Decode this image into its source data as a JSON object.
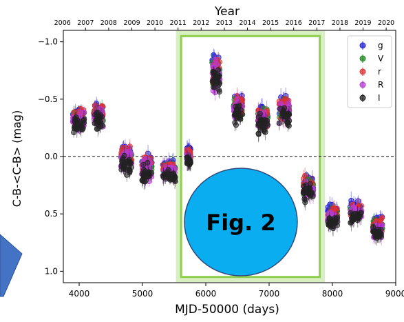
{
  "chart_data": {
    "type": "scatter",
    "title": "",
    "xlabel": "MJD-50000 (days)",
    "ylabel": "C-B-<C-B> (mag)",
    "top_axis_label": "Year",
    "xlim": [
      3750,
      9000
    ],
    "ylim": [
      1.1,
      -1.1
    ],
    "y_inverted": true,
    "x_ticks": [
      4000,
      5000,
      6000,
      7000,
      8000,
      9000
    ],
    "x_tick_labels": [
      "4000",
      "5000",
      "6000",
      "7000",
      "8000",
      "9000"
    ],
    "y_ticks": [
      -1.0,
      -0.5,
      0.0,
      0.5,
      1.0
    ],
    "y_tick_labels": [
      "−1.0",
      "−0.5",
      "0.0",
      "0.5",
      "1.0"
    ],
    "year_ticks": [
      {
        "label": "2006",
        "mjd": 3736
      },
      {
        "label": "2007",
        "mjd": 4101
      },
      {
        "label": "2008",
        "mjd": 4466
      },
      {
        "label": "2009",
        "mjd": 4832
      },
      {
        "label": "2010",
        "mjd": 5197
      },
      {
        "label": "2011",
        "mjd": 5562
      },
      {
        "label": "2012",
        "mjd": 5927
      },
      {
        "label": "2013",
        "mjd": 6293
      },
      {
        "label": "2014",
        "mjd": 6658
      },
      {
        "label": "2015",
        "mjd": 7023
      },
      {
        "label": "2016",
        "mjd": 7388
      },
      {
        "label": "2017",
        "mjd": 7754
      },
      {
        "label": "2018",
        "mjd": 8119
      },
      {
        "label": "2019",
        "mjd": 8484
      },
      {
        "label": "2020",
        "mjd": 8849
      }
    ],
    "reference_line": {
      "y": 0.0,
      "style": "dashed"
    },
    "legend": {
      "placement": "top-right",
      "entries": [
        {
          "label": "g",
          "color": "#2424d6"
        },
        {
          "label": "V",
          "color": "#1f8a1f"
        },
        {
          "label": "r",
          "color": "#e03030"
        },
        {
          "label": "R",
          "color": "#b63bd6"
        },
        {
          "label": "I",
          "color": "#222222"
        }
      ]
    },
    "season_groups": [
      {
        "x_range": [
          3900,
          4080
        ],
        "y_mean": -0.32,
        "spread": 0.1
      },
      {
        "x_range": [
          4230,
          4380
        ],
        "y_mean": -0.35,
        "spread": 0.12
      },
      {
        "x_range": [
          4660,
          4830
        ],
        "y_mean": 0.02,
        "spread": 0.12
      },
      {
        "x_range": [
          4990,
          5150
        ],
        "y_mean": 0.1,
        "spread": 0.13
      },
      {
        "x_range": [
          5320,
          5520
        ],
        "y_mean": 0.12,
        "spread": 0.07
      },
      {
        "x_range": [
          5700,
          5760
        ],
        "y_mean": 0.0,
        "spread": 0.06
      },
      {
        "x_range": [
          6100,
          6220
        ],
        "y_mean": -0.72,
        "spread": 0.17
      },
      {
        "x_range": [
          6440,
          6580
        ],
        "y_mean": -0.42,
        "spread": 0.12
      },
      {
        "x_range": [
          6820,
          6980
        ],
        "y_mean": -0.33,
        "spread": 0.11
      },
      {
        "x_range": [
          7160,
          7320
        ],
        "y_mean": -0.4,
        "spread": 0.14
      },
      {
        "x_range": [
          7540,
          7700
        ],
        "y_mean": 0.27,
        "spread": 0.1
      },
      {
        "x_range": [
          7920,
          8080
        ],
        "y_mean": 0.52,
        "spread": 0.08
      },
      {
        "x_range": [
          8280,
          8460
        ],
        "y_mean": 0.48,
        "spread": 0.08
      },
      {
        "x_range": [
          8640,
          8790
        ],
        "y_mean": 0.62,
        "spread": 0.08
      }
    ],
    "highlight_box": {
      "x_range": [
        5610,
        7800
      ],
      "y_range": [
        -1.05,
        1.05
      ],
      "color": "#8fd14f"
    },
    "annotation": {
      "text": "Fig. 2",
      "fill": "#0aaef0",
      "stroke": "#2f4b7c"
    },
    "side_shape": {
      "fill": "#4472c4",
      "stroke": "#2f5597"
    }
  }
}
